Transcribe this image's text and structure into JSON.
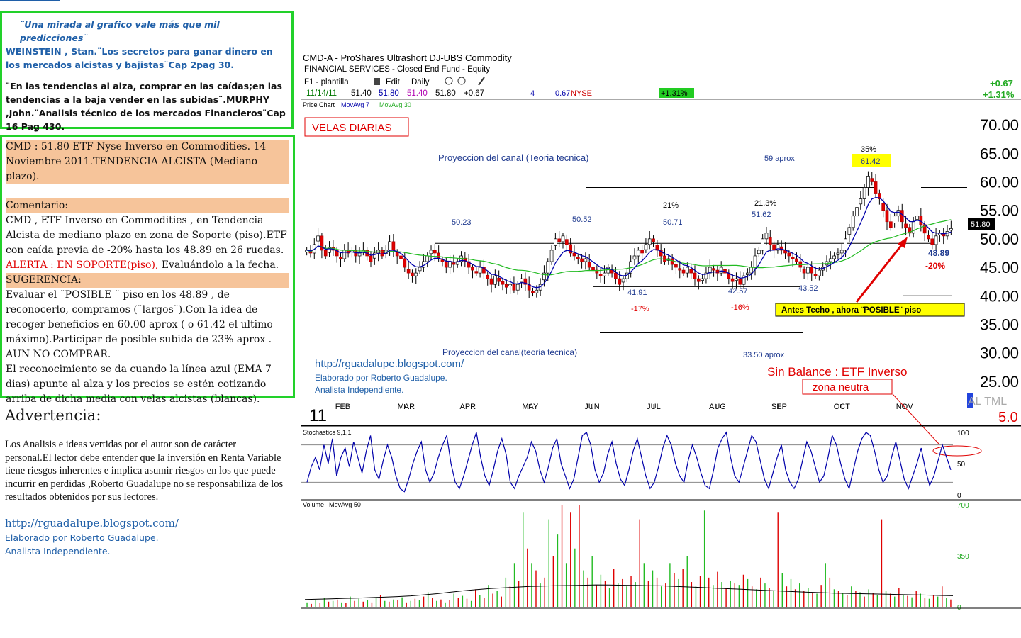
{
  "quote_box": {
    "line1": "¨Una mirada  al grafico vale más que mil predicciones¨",
    "line2": "WEINSTEIN , Stan.¨Los secretos para ganar dinero en los mercados alcistas y   bajistas¨Cap 2pag 30.",
    "line3": "¨En las tendencias al alza, comprar en las caídas;en las tendencias a la baja vender en las subidas¨.MURPHY ,John.¨Analisis técnico de los mercados Financieros¨Cap 16 Pag 430."
  },
  "comment_box": {
    "headline": "CMD  : 51.80 ETF Nyse Inverso en Commodities.  14 Noviembre 2011.TENDENCIA ALCISTA (Mediano plazo).",
    "comentario_label": "Comentario:",
    "comentario_text": "CMD , ETF Inverso en Commodities , en Tendencia Alcista de mediano plazo  en zona de Soporte (piso).ETF con caída previa de -20% hasta los 48.89 en 26 ruedas.",
    "alerta": "ALERTA : EN SOPORTE(piso),",
    "alerta_tail": " Evaluándolo a la fecha.",
    "sugerencia_label": "SUGERENCIA:",
    "sugerencia_text": "Evaluar el ¨POSIBLE ¨ piso en los 48.89  , de reconocerlo, compramos (¨largos¨).Con la idea de  recoger beneficios en 60.00 aprox ( o 61.42 el ultimo máximo).Participar de posible  subida de 23% aprox  . AUN NO COMPRAR.",
    "ema_text": "El reconocimiento se da cuando la línea azul (EMA 7 dias) apunte al alza y  los precios se estén cotizando arriba de dicha media con velas alcistas (blancas)."
  },
  "advertencia": {
    "title": "Advertencia:",
    "text": "Los Analisis e ideas  vertidas por el autor son de carácter personal.El lector debe entender que la inversión en Renta Variable tiene riesgos inherentes e implica asumir riesgos en los que puede incurrir en perdidas ,Roberto Guadalupe no se responsabiliza de los resultados obtenidos por sus lectores.",
    "url": "http://rguadalupe.blogspot.com/",
    "credit1": "Elaborado por Roberto Guadalupe.",
    "credit2": "Analista Independiente."
  },
  "chart_header": {
    "title": "CMD-A  -  ProShares Ultrashort DJ-UBS Commodity",
    "subtitle": "FINANCIAL SERVICES - Closed End Fund - Equity",
    "template": "F1 - plantilla",
    "edit": "Edit",
    "period": "Daily",
    "date": "11/14/11",
    "open": "51.40",
    "high": "51.80",
    "low": "51.40",
    "close": "51.80",
    "change": "+0.67",
    "n4": "4",
    "chg2": "0.67",
    "exchange": "NYSE",
    "pct_badge": "+1.31%",
    "right_change": "+0.67",
    "right_pct": "+1.31%",
    "legend_price": "Price Chart",
    "legend_ma7": "MovAvg 7",
    "legend_ma30": "MovAvg 30",
    "year_label": "11",
    "altml": "AL TML",
    "version": "5.0"
  },
  "annotations": {
    "velas": "VELAS DIARIAS",
    "canal_top": "Proyeccion del canal (Teoria tecnica)",
    "canal_bottom": "Proyeccion del canal(teoria tecnica)",
    "aprox59": "59 aprox",
    "aprox33": "33.50 aprox",
    "pct35": "35%",
    "max6142": "61.42",
    "v5023": "50.23",
    "v5052": "50.52",
    "pct21a": "21%",
    "v5071": "50.71",
    "pct21b": "21.3%",
    "v5162": "51.62",
    "v4191": "41.91",
    "v4257": "42.57",
    "v4352": "43.52",
    "pm17": "-17%",
    "pm16": "-16%",
    "v4889": "48.89",
    "pm20": "-20%",
    "last_price": "51.80",
    "techo": "Antes Techo , ahora ¨POSIBLE¨ piso",
    "url": "http://rguadalupe.blogspot.com/",
    "credit1": "Elaborado por Roberto Guadalupe.",
    "credit2": "Analista Independiente.",
    "sin_balance": "Sin Balance : ETF Inverso",
    "zona": "zona neutra"
  },
  "indicators": {
    "stoch_label": "Stochastics 9,1,1",
    "volume_label": "Volume",
    "volume_ma": "MovAvg 50"
  },
  "colors": {
    "frame": "#22d12a",
    "blue_text": "#1f5fa8",
    "salmon": "#f6c49a",
    "red": "#e00000",
    "bull": "#ffffff",
    "bear": "#e00000",
    "ema7": "#0000aa",
    "ma30": "#22bb22"
  },
  "chart_data": [
    {
      "type": "candlestick",
      "title": "CMD-A  -  ProShares Ultrashort DJ-UBS Commodity",
      "x_ticks": [
        "FEB",
        "MAR",
        "APR",
        "MAY",
        "JUN",
        "JUL",
        "AUG",
        "SEP",
        "OCT",
        "NOV"
      ],
      "y_ticks": [
        25,
        30,
        35,
        40,
        45,
        50,
        55,
        60,
        65,
        70
      ],
      "ylim": [
        21,
        72
      ],
      "close": [
        48,
        47.5,
        49,
        50.5,
        48,
        47,
        48.5,
        48,
        47,
        46.5,
        48,
        47.5,
        48,
        47,
        47.5,
        48,
        47,
        46,
        47.5,
        48,
        47,
        48,
        49.5,
        48,
        47,
        46.5,
        45,
        44,
        43.5,
        44,
        45,
        46,
        47,
        48,
        47.5,
        46.5,
        46,
        45,
        46,
        45.5,
        46,
        47,
        46,
        45,
        44.5,
        44,
        45,
        44,
        43,
        42,
        43.5,
        42.5,
        42,
        41.5,
        42,
        41,
        42,
        43,
        42,
        41,
        40.5,
        41,
        42,
        44,
        46,
        48,
        50,
        49.5,
        50.5,
        49,
        47.5,
        47,
        46.5,
        46,
        46.5,
        45,
        44.5,
        44,
        43.5,
        44,
        45,
        44,
        43,
        42,
        43,
        44,
        46,
        47,
        48,
        47.5,
        49,
        50,
        49.5,
        48,
        47,
        46,
        46.5,
        45.5,
        45,
        44.5,
        44,
        45,
        44,
        43,
        42.5,
        43,
        44,
        45,
        44.5,
        44,
        45,
        44,
        43,
        42.5,
        43,
        42,
        43.5,
        44,
        45,
        47,
        48,
        50,
        51,
        49,
        48,
        49,
        48,
        47.5,
        47,
        46.5,
        46,
        45,
        44,
        45,
        44,
        43.5,
        44.5,
        45,
        46,
        46.5,
        47,
        47.5,
        48,
        50,
        52,
        54,
        55.5,
        57,
        59,
        61,
        60,
        58,
        57,
        55,
        53,
        52,
        54,
        55,
        53,
        52,
        51,
        53,
        54,
        52.5,
        51,
        50,
        49,
        50.5,
        51,
        50.5,
        51.3,
        51.8
      ],
      "ema7_last": 50.8,
      "ma30_last": 51.2,
      "support_lines": [
        49.2,
        41.6
      ],
      "channel_top_line": 59,
      "channel_bottom_line": 33.5
    },
    {
      "type": "line",
      "title": "Stochastics 9,1,1",
      "ylim": [
        0,
        100
      ],
      "y_ticks": [
        0,
        50,
        100
      ],
      "values": [
        20,
        45,
        60,
        40,
        80,
        50,
        90,
        30,
        60,
        75,
        45,
        85,
        60,
        35,
        70,
        95,
        40,
        25,
        55,
        80,
        60,
        30,
        10,
        5,
        25,
        50,
        70,
        85,
        40,
        20,
        35,
        60,
        80,
        95,
        50,
        20,
        10,
        30,
        55,
        80,
        100,
        60,
        30,
        15,
        40,
        70,
        90,
        65,
        20,
        10,
        30,
        45,
        60,
        85,
        70,
        40,
        20,
        45,
        75,
        90,
        50,
        30,
        10,
        25,
        60,
        95,
        100,
        80,
        40,
        20,
        35,
        65,
        85,
        50,
        25,
        15,
        40,
        70,
        90,
        60,
        30,
        10,
        20,
        45,
        75,
        95,
        80,
        50,
        30,
        20,
        55,
        80,
        60,
        35,
        15,
        10,
        40,
        75,
        90,
        100,
        60,
        30,
        20,
        45,
        70,
        95,
        85,
        55,
        25,
        10,
        35,
        60,
        80,
        40,
        20,
        10,
        25,
        55,
        85,
        70,
        45,
        20,
        30,
        60,
        95,
        80,
        50,
        25,
        10,
        40,
        70,
        90,
        100,
        95,
        70,
        40,
        20,
        30,
        60,
        85,
        55,
        25,
        10,
        30,
        50,
        75,
        40,
        15,
        30,
        55,
        80,
        60,
        40
      ],
      "ref_lines": [
        20,
        80
      ]
    },
    {
      "type": "bar",
      "title": "Volume",
      "ylim": [
        0,
        700
      ],
      "y_ticks": [
        0,
        350,
        700
      ],
      "values": [
        30,
        20,
        45,
        25,
        60,
        35,
        40,
        50,
        30,
        25,
        70,
        40,
        55,
        35,
        45,
        30,
        60,
        80,
        40,
        35,
        50,
        45,
        65,
        30,
        40,
        55,
        45,
        70,
        100,
        60,
        40,
        50,
        30,
        45,
        90,
        60,
        75,
        55,
        40,
        120,
        80,
        60,
        150,
        90,
        110,
        70,
        200,
        140,
        300,
        180,
        650,
        400,
        300,
        250,
        160,
        200,
        600,
        350,
        500,
        700,
        300,
        650,
        400,
        700,
        250,
        200,
        350,
        150,
        220,
        180,
        130,
        260,
        160,
        190,
        140,
        210,
        170,
        600,
        300,
        180,
        250,
        200,
        140,
        160,
        300,
        230,
        190,
        260,
        350,
        170,
        140,
        210,
        660,
        200,
        150,
        240,
        170,
        130,
        180,
        160,
        150,
        220,
        190,
        140,
        120,
        200,
        160,
        130,
        110,
        650,
        230,
        140,
        190,
        120,
        160,
        110,
        130,
        100,
        90,
        150,
        300,
        200,
        120,
        110,
        90,
        80,
        140,
        110,
        100,
        70,
        120,
        95,
        80,
        600,
        110,
        90,
        70,
        130,
        85,
        75,
        65,
        110,
        90,
        60,
        55,
        80,
        70,
        140,
        60,
        50
      ],
      "ma50": [
        50,
        52,
        55,
        58,
        60,
        63,
        66,
        70,
        75,
        82,
        90,
        100,
        110,
        118,
        125,
        130,
        135,
        140,
        142,
        145,
        146,
        148,
        150,
        149,
        148,
        147,
        145,
        144,
        140,
        136,
        132,
        128,
        124,
        120,
        116,
        112,
        108,
        104,
        100,
        97,
        94,
        92,
        90,
        88,
        86,
        84,
        82,
        80,
        78,
        76
      ]
    }
  ]
}
